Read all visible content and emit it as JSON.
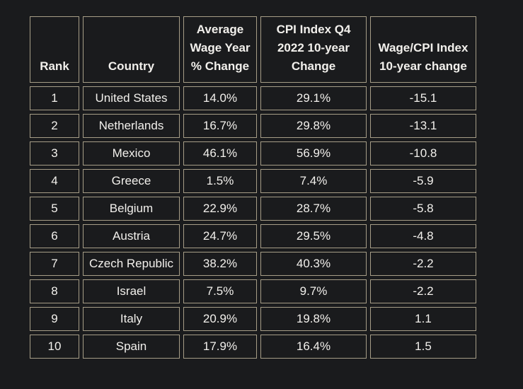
{
  "colors": {
    "background": "#1a1b1d",
    "border": "#a69d87",
    "text": "#f2f0ec"
  },
  "chart_data": {
    "type": "table",
    "columns": [
      "Rank",
      "Country",
      "Average Wage Year % Change",
      "CPI Index Q4 2022 10-year Change",
      "Wage/CPI Index 10-year change"
    ],
    "header_lines": {
      "rank": [
        "Rank"
      ],
      "country": [
        "Country"
      ],
      "avg_wage": [
        "Average",
        "Wage Year",
        "% Change"
      ],
      "cpi": [
        "CPI Index Q4",
        "2022 10-year",
        "Change"
      ],
      "wage_cpi": [
        "Wage/CPI Index",
        "10-year change"
      ]
    },
    "rows": [
      {
        "rank": "1",
        "country": "United States",
        "avg_wage": "14.0%",
        "cpi": "29.1%",
        "wage_cpi": "-15.1"
      },
      {
        "rank": "2",
        "country": "Netherlands",
        "avg_wage": "16.7%",
        "cpi": "29.8%",
        "wage_cpi": "-13.1"
      },
      {
        "rank": "3",
        "country": "Mexico",
        "avg_wage": "46.1%",
        "cpi": "56.9%",
        "wage_cpi": "-10.8"
      },
      {
        "rank": "4",
        "country": "Greece",
        "avg_wage": "1.5%",
        "cpi": "7.4%",
        "wage_cpi": "-5.9"
      },
      {
        "rank": "5",
        "country": "Belgium",
        "avg_wage": "22.9%",
        "cpi": "28.7%",
        "wage_cpi": "-5.8"
      },
      {
        "rank": "6",
        "country": "Austria",
        "avg_wage": "24.7%",
        "cpi": "29.5%",
        "wage_cpi": "-4.8"
      },
      {
        "rank": "7",
        "country": "Czech Republic",
        "avg_wage": "38.2%",
        "cpi": "40.3%",
        "wage_cpi": "-2.2"
      },
      {
        "rank": "8",
        "country": "Israel",
        "avg_wage": "7.5%",
        "cpi": "9.7%",
        "wage_cpi": "-2.2"
      },
      {
        "rank": "9",
        "country": "Italy",
        "avg_wage": "20.9%",
        "cpi": "19.8%",
        "wage_cpi": "1.1"
      },
      {
        "rank": "10",
        "country": "Spain",
        "avg_wage": "17.9%",
        "cpi": "16.4%",
        "wage_cpi": "1.5"
      }
    ]
  }
}
